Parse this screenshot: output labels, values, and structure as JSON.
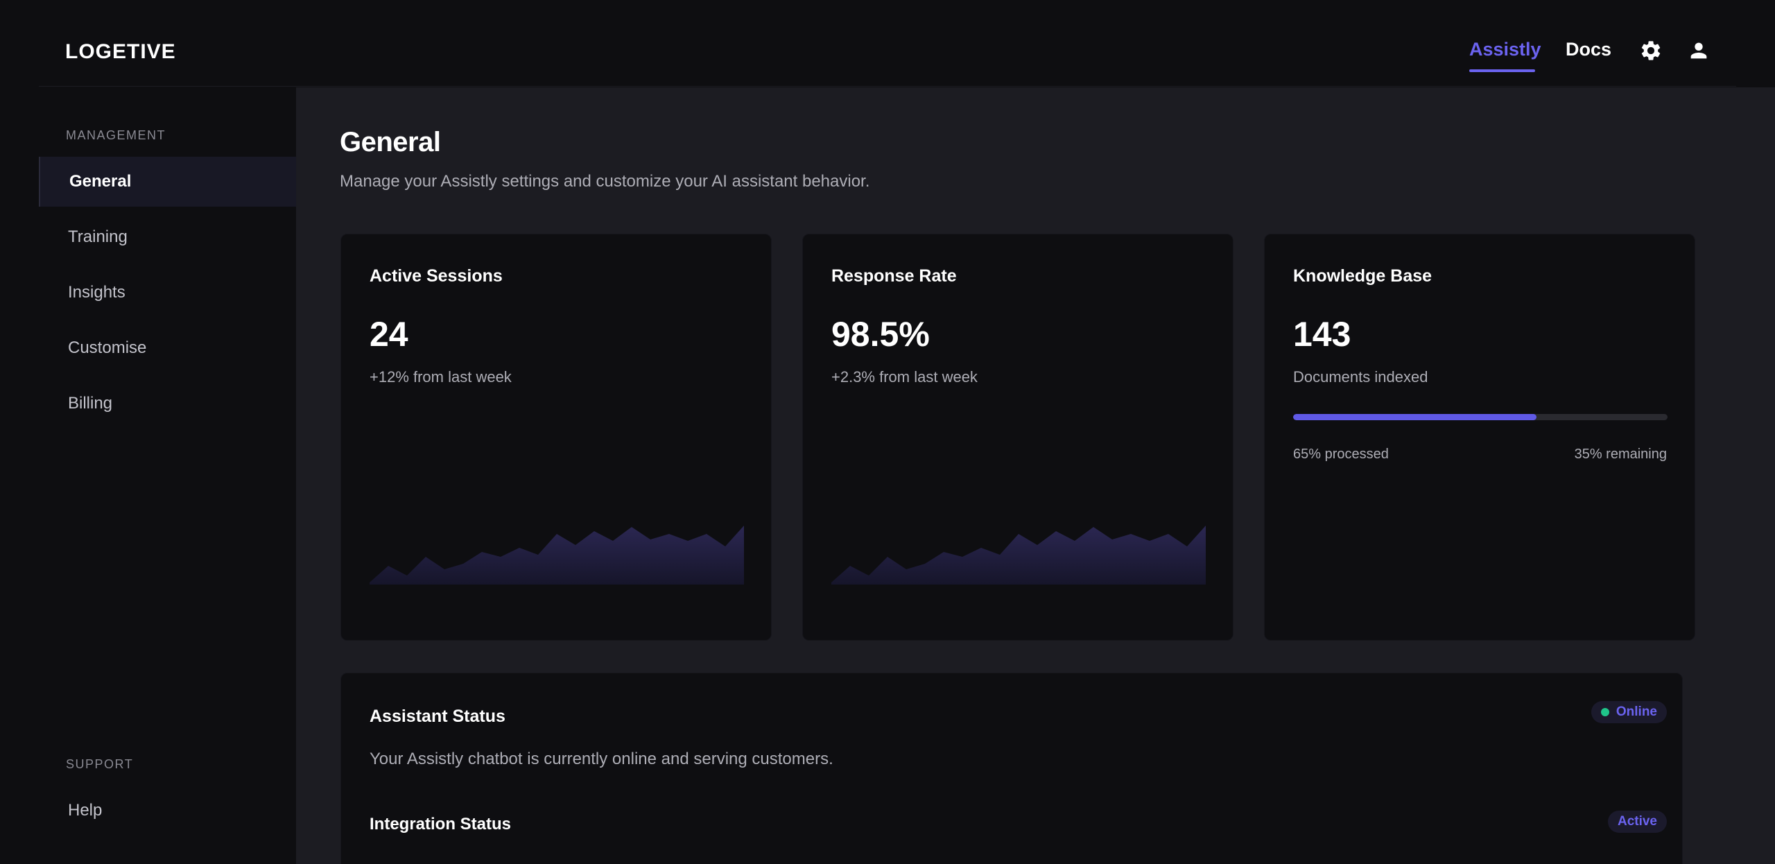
{
  "header": {
    "logo": "LOGETIVE",
    "nav": [
      {
        "label": "Assistly",
        "active": true
      },
      {
        "label": "Docs",
        "active": false
      }
    ],
    "icons": [
      "gear-icon",
      "user-icon"
    ]
  },
  "sidebar": {
    "management_label": "MANAGEMENT",
    "items": [
      {
        "label": "General",
        "active": true
      },
      {
        "label": "Training",
        "active": false
      },
      {
        "label": "Insights",
        "active": false
      },
      {
        "label": "Customise",
        "active": false
      },
      {
        "label": "Billing",
        "active": false
      }
    ],
    "support_label": "SUPPORT",
    "support_items": [
      {
        "label": "Help"
      }
    ]
  },
  "main": {
    "title": "General",
    "subtitle": "Manage your Assistly settings and customize your AI assistant behavior.",
    "cards": [
      {
        "title": "Active Sessions",
        "value": "24",
        "note": "+12% from last week"
      },
      {
        "title": "Response Rate",
        "value": "98.5%",
        "note": "+2.3% from last week"
      },
      {
        "title": "Knowledge Base",
        "value": "143",
        "note": "Documents indexed",
        "progress": 0.65,
        "progress_left": "65% processed",
        "progress_right": "35% remaining"
      }
    ],
    "status": {
      "title": "Assistant Status",
      "badge": "Online",
      "description": "Your Assistly chatbot is currently online and serving customers.",
      "integration_title": "Integration Status",
      "integration_badge": "Active"
    }
  },
  "colors": {
    "accent": "#6b63f0",
    "online_dot": "#1fc48a",
    "background": "#0e0e11",
    "panel": "#1c1c22"
  }
}
